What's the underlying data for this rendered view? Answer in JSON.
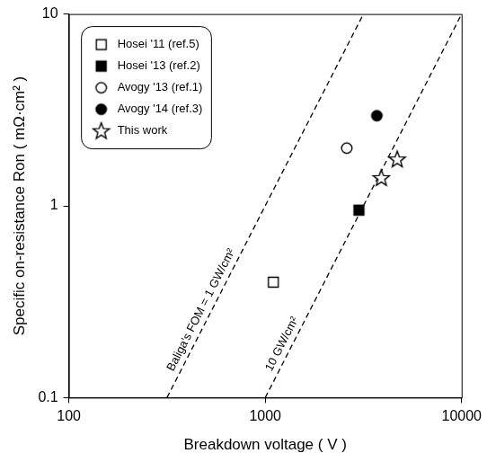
{
  "chart_data": {
    "type": "scatter",
    "x_label": "Breakdown voltage ( V )",
    "y_label": "Specific on-resistance Ron ( mΩ·cm² )",
    "log": true,
    "grid": false,
    "legend": "top-left",
    "xlim": [
      100,
      10000
    ],
    "xticks": [
      100,
      1000,
      10000
    ],
    "ylim": [
      0.1,
      10
    ],
    "yticks": [
      0.1,
      1,
      10
    ],
    "series": [
      {
        "name": "Hosei '11 (ref.5)",
        "color": "#000000",
        "marker": "square-open",
        "x": [
          1100
        ],
        "values": [
          0.4
        ]
      },
      {
        "name": "Hosei '13 (ref.2)",
        "color": "#000000",
        "marker": "square",
        "x": [
          3000
        ],
        "values": [
          0.95
        ]
      },
      {
        "name": "Avogy '13 (ref.1)",
        "color": "#000000",
        "marker": "circle-open",
        "x": [
          2600
        ],
        "values": [
          2.0
        ]
      },
      {
        "name": "Avogy '14 (ref.3)",
        "color": "#000000",
        "marker": "circle",
        "x": [
          3700
        ],
        "values": [
          2.95
        ]
      },
      {
        "name": "This work",
        "color": "#000000",
        "marker": "star-open",
        "x": [
          3900,
          4700
        ],
        "values": [
          1.4,
          1.75
        ]
      }
    ],
    "reference_lines": [
      {
        "label": "Baliga's FOM = 1 GW/cm²",
        "color": "#000000",
        "line_style": "dashed",
        "x": [
          316,
          3162
        ],
        "values": [
          0.1,
          10
        ]
      },
      {
        "label": "10 GW/cm²",
        "color": "#000000",
        "line_style": "dashed",
        "x": [
          1000,
          10000
        ],
        "values": [
          0.1,
          10
        ]
      }
    ]
  }
}
